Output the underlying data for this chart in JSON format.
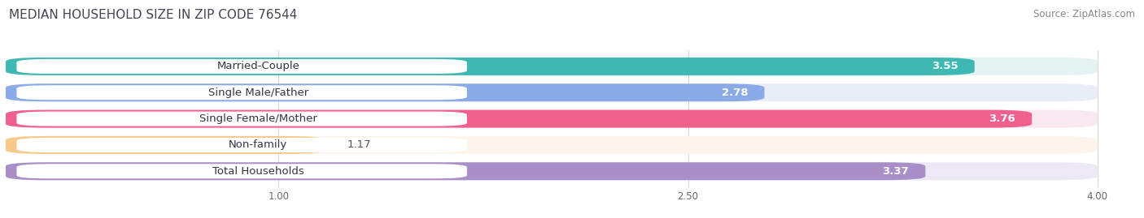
{
  "title": "MEDIAN HOUSEHOLD SIZE IN ZIP CODE 76544",
  "source": "Source: ZipAtlas.com",
  "categories": [
    "Married-Couple",
    "Single Male/Father",
    "Single Female/Mother",
    "Non-family",
    "Total Households"
  ],
  "values": [
    3.55,
    2.78,
    3.76,
    1.17,
    3.37
  ],
  "bar_colors": [
    "#3db8b2",
    "#8aaae8",
    "#f0608c",
    "#f5c98a",
    "#a98ec8"
  ],
  "bar_bg_colors": [
    "#e4f2f2",
    "#e8edf8",
    "#fae8f0",
    "#fdf5ec",
    "#ede8f5"
  ],
  "xlim": [
    0.0,
    4.15
  ],
  "xdata_max": 4.0,
  "xticks": [
    1.0,
    2.5,
    4.0
  ],
  "label_fontsize": 9.5,
  "value_fontsize": 9.5,
  "title_fontsize": 11,
  "source_fontsize": 8.5,
  "bar_height": 0.68,
  "label_color": "#333344",
  "value_color_inside": "#ffffff",
  "value_color_outside": "#555555",
  "bg_color": "#f5f5f8",
  "bar_gap": 0.35
}
